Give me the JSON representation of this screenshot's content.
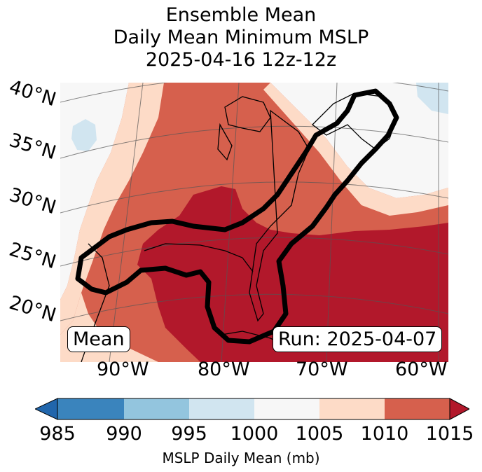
{
  "title": {
    "line1": "Ensemble Mean",
    "line2": "Daily Mean Minimum MSLP",
    "line3": "2025-04-16 12z-12z"
  },
  "map": {
    "lat_labels": [
      "40°N",
      "35°N",
      "30°N",
      "25°N",
      "20°N"
    ],
    "lon_labels": [
      "90°W",
      "80°W",
      "70°W",
      "60°W"
    ],
    "mean_box": "Mean",
    "run_box": "Run: 2025-04-07",
    "contour_color": "#000000",
    "field_colors": {
      "band_985_990": "#2166ac",
      "band_990_995": "#92c5de",
      "band_995_1000": "#d1e5f0",
      "band_1000_1005": "#f7f7f7",
      "band_1005_1010": "#fddbc7",
      "band_1010_1015": "#d6604d",
      "band_above_1015": "#b2182b"
    }
  },
  "colorbar": {
    "label": "MSLP Daily Mean (mb)",
    "ticks": [
      "985",
      "990",
      "995",
      "1000",
      "1005",
      "1010",
      "1015"
    ],
    "colors": [
      "#3a84bd",
      "#93c5de",
      "#d1e5f0",
      "#f7f7f7",
      "#fddbc7",
      "#d6604d",
      "#b2182b"
    ],
    "under_color": "#2166ac",
    "over_color": "#b2182b"
  }
}
